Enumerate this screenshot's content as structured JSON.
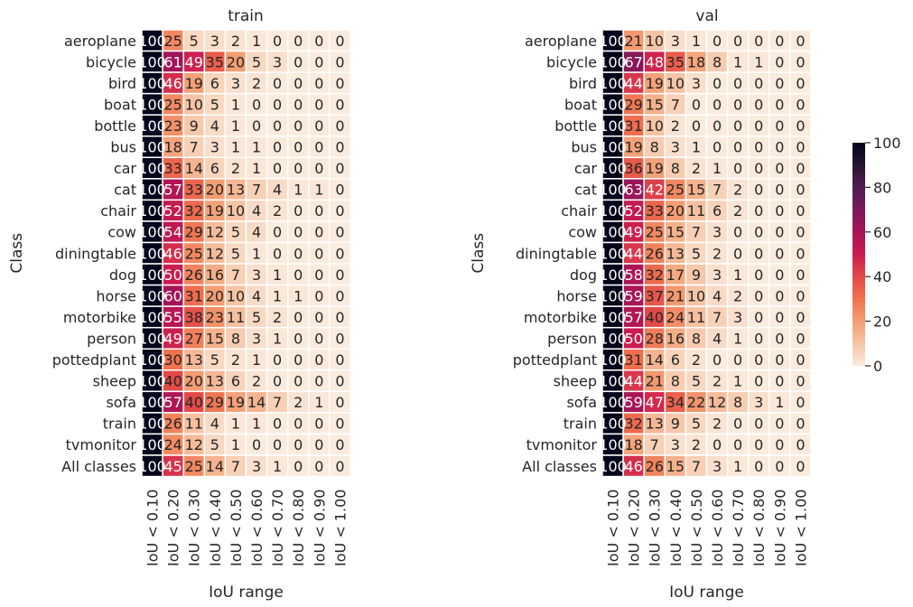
{
  "chart_data": [
    {
      "type": "heatmap",
      "title": "train",
      "xlabel": "IoU range",
      "ylabel": "Class",
      "x_categories": [
        "IoU < 0.10",
        "IoU < 0.20",
        "IoU < 0.30",
        "IoU < 0.40",
        "IoU < 0.50",
        "IoU < 0.60",
        "IoU < 0.70",
        "IoU < 0.80",
        "IoU < 0.90",
        "IoU < 1.00"
      ],
      "y_categories": [
        "aeroplane",
        "bicycle",
        "bird",
        "boat",
        "bottle",
        "bus",
        "car",
        "cat",
        "chair",
        "cow",
        "diningtable",
        "dog",
        "horse",
        "motorbike",
        "person",
        "pottedplant",
        "sheep",
        "sofa",
        "train",
        "tvmonitor",
        "All classes"
      ],
      "values": [
        [
          100,
          25,
          5,
          3,
          2,
          1,
          0,
          0,
          0,
          0
        ],
        [
          100,
          61,
          49,
          35,
          20,
          5,
          3,
          0,
          0,
          0
        ],
        [
          100,
          46,
          19,
          6,
          3,
          2,
          0,
          0,
          0,
          0
        ],
        [
          100,
          25,
          10,
          5,
          1,
          0,
          0,
          0,
          0,
          0
        ],
        [
          100,
          23,
          9,
          4,
          1,
          0,
          0,
          0,
          0,
          0
        ],
        [
          100,
          18,
          7,
          3,
          1,
          1,
          0,
          0,
          0,
          0
        ],
        [
          100,
          33,
          14,
          6,
          2,
          1,
          0,
          0,
          0,
          0
        ],
        [
          100,
          57,
          33,
          20,
          13,
          7,
          4,
          1,
          1,
          0
        ],
        [
          100,
          52,
          32,
          19,
          10,
          4,
          2,
          0,
          0,
          0
        ],
        [
          100,
          54,
          29,
          12,
          5,
          4,
          0,
          0,
          0,
          0
        ],
        [
          100,
          46,
          25,
          12,
          5,
          1,
          0,
          0,
          0,
          0
        ],
        [
          100,
          50,
          26,
          16,
          7,
          3,
          1,
          0,
          0,
          0
        ],
        [
          100,
          60,
          31,
          20,
          10,
          4,
          1,
          1,
          0,
          0
        ],
        [
          100,
          55,
          38,
          23,
          11,
          5,
          2,
          0,
          0,
          0
        ],
        [
          100,
          49,
          27,
          15,
          8,
          3,
          1,
          0,
          0,
          0
        ],
        [
          100,
          30,
          13,
          5,
          2,
          1,
          0,
          0,
          0,
          0
        ],
        [
          100,
          40,
          20,
          13,
          6,
          2,
          0,
          0,
          0,
          0
        ],
        [
          100,
          57,
          40,
          29,
          19,
          14,
          7,
          2,
          1,
          0
        ],
        [
          100,
          26,
          11,
          4,
          1,
          1,
          0,
          0,
          0,
          0
        ],
        [
          100,
          24,
          12,
          5,
          1,
          0,
          0,
          0,
          0,
          0
        ],
        [
          100,
          45,
          25,
          14,
          7,
          3,
          1,
          0,
          0,
          0
        ]
      ],
      "cell_labels": [
        [
          "100",
          "25",
          "5",
          "3",
          "2",
          "1",
          "0",
          "0",
          "0",
          "0"
        ],
        [
          "100",
          "61",
          "49",
          "35",
          "20",
          "5",
          "3",
          "0",
          "0",
          "0"
        ],
        [
          "100",
          "46",
          "19",
          "6",
          "3",
          "2",
          "0",
          "0",
          "0",
          "0"
        ],
        [
          "100",
          "25",
          "10",
          "5",
          "1",
          "0",
          "0",
          "0",
          "0",
          "0"
        ],
        [
          "100",
          "23",
          "9",
          "4",
          "1",
          "0",
          "0",
          "0",
          "0",
          "0"
        ],
        [
          "100",
          "18",
          "7",
          "3",
          "1",
          "1",
          "0",
          "0",
          "0",
          "0"
        ],
        [
          "100",
          "33",
          "14",
          "6",
          "2",
          "1",
          "0",
          "0",
          "0",
          "0"
        ],
        [
          "100",
          "57",
          "33",
          "20",
          "13",
          "7",
          "4",
          "1",
          "1",
          "0"
        ],
        [
          "100",
          "52",
          "32",
          "19",
          "10",
          "4",
          "2",
          "0",
          "0",
          "0"
        ],
        [
          "100",
          "54",
          "29",
          "12",
          "5",
          "4",
          "0",
          "0",
          "0",
          "0"
        ],
        [
          "100",
          "46",
          "25",
          "12",
          "5",
          "1",
          "0",
          "0",
          "0",
          "0"
        ],
        [
          "100",
          "50",
          "26",
          "16",
          "7",
          "3",
          "1",
          "0",
          "0",
          "0"
        ],
        [
          "100",
          "60",
          "31",
          "20",
          "10",
          "4",
          "1",
          "1",
          "0",
          "0"
        ],
        [
          "100",
          "55",
          "38",
          "23",
          "11",
          "5",
          "2",
          "0",
          "0",
          "0"
        ],
        [
          "100",
          "49",
          "27",
          "15",
          "8",
          "3",
          "1",
          "0",
          "0",
          "0"
        ],
        [
          "100",
          "30",
          "13",
          "5",
          "2",
          "1",
          "0",
          "0",
          "0",
          "0"
        ],
        [
          "100",
          "40",
          "20",
          "13",
          "6",
          "2",
          "0",
          "0",
          "0",
          "0"
        ],
        [
          "100",
          "57",
          "40",
          "29",
          "19",
          "14",
          "7",
          "2",
          "1",
          "0"
        ],
        [
          "100",
          "26",
          "11",
          "4",
          "1",
          "1",
          "0",
          "0",
          "0",
          "0"
        ],
        [
          "100",
          "24",
          "12",
          "5",
          "1",
          "0",
          "0",
          "0",
          "0",
          "0"
        ],
        [
          "100",
          "45",
          "25",
          "14",
          "7",
          "3",
          "1",
          "0",
          "0",
          "0"
        ]
      ],
      "color_range": [
        0,
        100
      ]
    },
    {
      "type": "heatmap",
      "title": "val",
      "xlabel": "IoU range",
      "ylabel": "Class",
      "x_categories": [
        "IoU < 0.10",
        "IoU < 0.20",
        "IoU < 0.30",
        "IoU < 0.40",
        "IoU < 0.50",
        "IoU < 0.60",
        "IoU < 0.70",
        "IoU < 0.80",
        "IoU < 0.90",
        "IoU < 1.00"
      ],
      "y_categories": [
        "aeroplane",
        "bicycle",
        "bird",
        "boat",
        "bottle",
        "bus",
        "car",
        "cat",
        "chair",
        "cow",
        "diningtable",
        "dog",
        "horse",
        "motorbike",
        "person",
        "pottedplant",
        "sheep",
        "sofa",
        "train",
        "tvmonitor",
        "All classes"
      ],
      "values": [
        [
          100,
          21,
          10,
          3,
          1,
          0,
          0,
          0,
          0,
          0
        ],
        [
          100,
          67,
          48,
          35,
          18,
          8,
          1,
          1,
          0,
          0
        ],
        [
          100,
          44,
          19,
          10,
          3,
          0,
          0,
          0,
          0,
          0
        ],
        [
          100,
          29,
          15,
          7,
          0,
          0,
          0,
          0,
          0,
          0
        ],
        [
          100,
          31,
          10,
          2,
          0,
          0,
          0,
          0,
          0,
          0
        ],
        [
          100,
          19,
          8,
          3,
          1,
          0,
          0,
          0,
          0,
          0
        ],
        [
          100,
          36,
          19,
          8,
          2,
          1,
          0,
          0,
          0,
          0
        ],
        [
          100,
          63,
          42,
          25,
          15,
          7,
          2,
          0,
          0,
          0
        ],
        [
          100,
          52,
          33,
          20,
          11,
          6,
          2,
          0,
          0,
          0
        ],
        [
          100,
          49,
          25,
          15,
          7,
          3,
          0,
          0,
          0,
          0
        ],
        [
          100,
          44,
          26,
          13,
          5,
          2,
          0,
          0,
          0,
          0
        ],
        [
          100,
          58,
          32,
          17,
          9,
          3,
          1,
          0,
          0,
          0
        ],
        [
          100,
          59,
          37,
          21,
          10,
          4,
          2,
          0,
          0,
          0
        ],
        [
          100,
          57,
          40,
          24,
          11,
          7,
          3,
          0,
          0,
          0
        ],
        [
          100,
          50,
          28,
          16,
          8,
          4,
          1,
          0,
          0,
          0
        ],
        [
          100,
          31,
          14,
          6,
          2,
          0,
          0,
          0,
          0,
          0
        ],
        [
          100,
          44,
          21,
          8,
          5,
          2,
          1,
          0,
          0,
          0
        ],
        [
          100,
          59,
          47,
          34,
          22,
          12,
          8,
          3,
          1,
          0
        ],
        [
          100,
          32,
          13,
          9,
          5,
          2,
          0,
          0,
          0,
          0
        ],
        [
          100,
          18,
          7,
          3,
          2,
          0,
          0,
          0,
          0,
          0
        ],
        [
          100,
          46,
          26,
          15,
          7,
          3,
          1,
          0,
          0,
          0
        ]
      ],
      "cell_labels": [
        [
          "100",
          "21",
          "10",
          "3",
          "1",
          "0",
          "0",
          "0",
          "0",
          "0"
        ],
        [
          "100",
          "67",
          "48",
          "35",
          "18",
          "8",
          "1",
          "1",
          "0",
          "0"
        ],
        [
          "100",
          "44",
          "19",
          "10",
          "3",
          "0",
          "0",
          "0",
          "0",
          "0"
        ],
        [
          "100",
          "29",
          "15",
          "7",
          "0",
          "0",
          "0",
          "0",
          "0",
          "0"
        ],
        [
          "100",
          "31",
          "10",
          "2",
          "0",
          "0",
          "0",
          "0",
          "0",
          "0"
        ],
        [
          "100",
          "19",
          "8",
          "3",
          "1",
          "0",
          "0",
          "0",
          "0",
          "0"
        ],
        [
          "100",
          "36",
          "19",
          "8",
          "2",
          "1",
          "0",
          "0",
          "0",
          "0"
        ],
        [
          "100",
          "63",
          "42",
          "25",
          "15",
          "7",
          "2",
          "0",
          "0",
          "0"
        ],
        [
          "100",
          "52",
          "33",
          "20",
          "11",
          "6",
          "2",
          "0",
          "0",
          "0"
        ],
        [
          "100",
          "49",
          "25",
          "15",
          "7",
          "3",
          "0",
          "0",
          "0",
          "0"
        ],
        [
          "100",
          "44",
          "26",
          "13",
          "5",
          "2",
          "0",
          "0",
          "0",
          "0"
        ],
        [
          "100",
          "58",
          "32",
          "17",
          "9",
          "3",
          "1",
          "0",
          "0",
          "0"
        ],
        [
          "100",
          "59",
          "37",
          "21",
          "10",
          "4",
          "2",
          "0",
          "0",
          "0"
        ],
        [
          "100",
          "57",
          "40",
          "24",
          "11",
          "7",
          "3",
          "0",
          "0",
          "0"
        ],
        [
          "100",
          "50",
          "28",
          "16",
          "8",
          "4",
          "1",
          "0",
          "0",
          "0"
        ],
        [
          "100",
          "31",
          "14",
          "6",
          "2",
          "0",
          "0",
          "0",
          "0",
          "0"
        ],
        [
          "100",
          "44",
          "21",
          "8",
          "5",
          "2",
          "1",
          "0",
          "0",
          "0"
        ],
        [
          "100",
          "59",
          "47",
          "34",
          "22",
          "12",
          "8",
          "3",
          "1",
          "0"
        ],
        [
          "100",
          "32",
          "13",
          "9",
          "5",
          "2",
          "0",
          "0",
          "0",
          "0"
        ],
        [
          "100",
          "18",
          "7",
          "3",
          "2",
          "0",
          "0",
          "0",
          "0",
          "0"
        ],
        [
          "100",
          "46",
          "26",
          "15",
          "7",
          "3",
          "1",
          "0",
          "0",
          "0"
        ]
      ],
      "color_range": [
        0,
        100
      ]
    }
  ],
  "colorbar": {
    "ticks": [
      0,
      20,
      40,
      60,
      80,
      100
    ],
    "tick_labels": [
      "0",
      "20",
      "40",
      "60",
      "80",
      "100"
    ],
    "colormap": "rocket_r"
  },
  "colors": {
    "low": "#faebdd",
    "high": "#03051a",
    "text_dark": "#262626",
    "text_light": "#ffffff"
  }
}
